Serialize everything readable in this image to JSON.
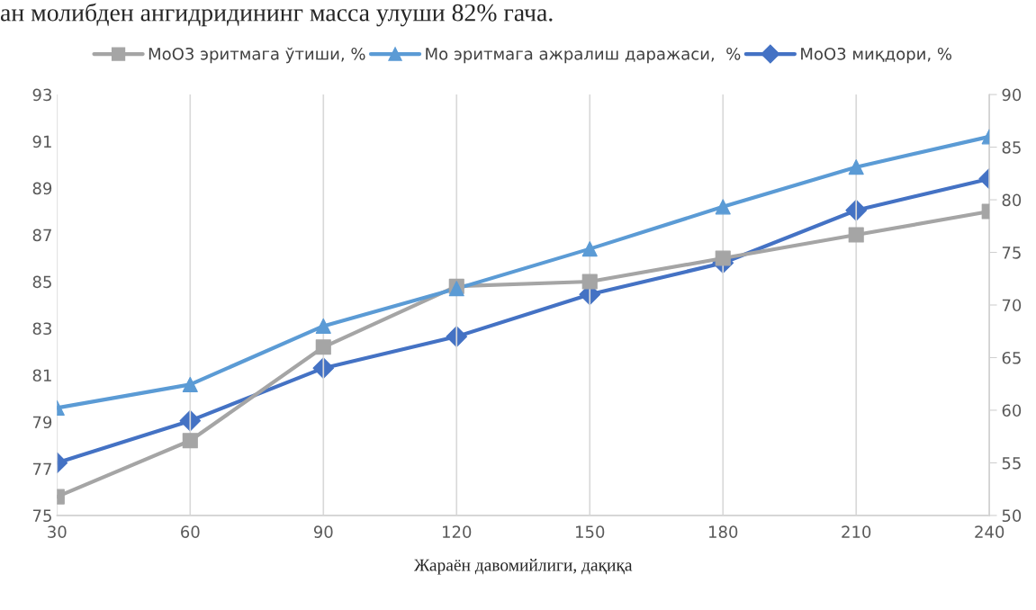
{
  "chart_data": {
    "type": "line",
    "xlabel": "Жараён давомийлиги, дақиқа",
    "annotations": [
      "ан молибден ангидридининг масса улуши 82% гача."
    ],
    "x": [
      30,
      60,
      90,
      120,
      150,
      180,
      210,
      240
    ],
    "series": [
      {
        "name": "МоО3 эритмага ўтиши, %",
        "color": "#a5a5a5",
        "marker": "square",
        "values": [
          75.8,
          78.2,
          82.2,
          84.8,
          85.0,
          86.0,
          87.0,
          88.0
        ]
      },
      {
        "name": "Мо эритмага ажралиш даражаси,  %",
        "color": "#5b9bd5",
        "marker": "triangle",
        "values": [
          79.6,
          80.6,
          83.1,
          84.7,
          86.4,
          88.2,
          89.9,
          91.2
        ]
      },
      {
        "name": "МоО3 миқдори, %",
        "color": "#4472c4",
        "marker": "diamond",
        "axis": "y2",
        "values": [
          55,
          59,
          64,
          67,
          71,
          74,
          79,
          82
        ]
      }
    ],
    "xlim": [
      30,
      240
    ],
    "xticks": [
      30,
      60,
      90,
      120,
      150,
      180,
      210,
      240
    ],
    "ylim": [
      75,
      93
    ],
    "yticks": [
      75,
      77,
      79,
      81,
      83,
      85,
      87,
      89,
      91,
      93
    ],
    "y2lim": [
      50,
      90
    ],
    "y2ticks": [
      50,
      55,
      60,
      65,
      70,
      75,
      80,
      85,
      90
    ],
    "grid": "x",
    "legend": "top"
  }
}
